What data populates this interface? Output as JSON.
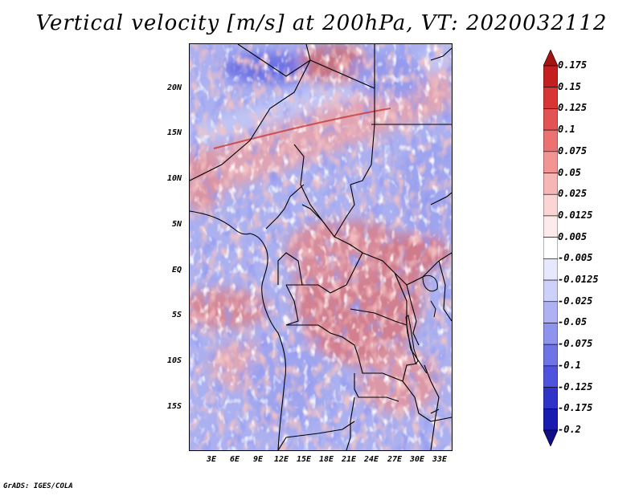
{
  "title": "Vertical velocity [m/s] at 200hPa, VT: 2020032112",
  "credit": "GrADS: IGES/COLA",
  "map": {
    "lat_labels": [
      "20N",
      "15N",
      "10N",
      "5N",
      "EQ",
      "5S",
      "10S",
      "15S"
    ],
    "lon_labels": [
      "3E",
      "6E",
      "9E",
      "12E",
      "15E",
      "18E",
      "21E",
      "24E",
      "27E",
      "30E",
      "33E"
    ]
  },
  "colorbar": {
    "labels": [
      "0.175",
      "0.15",
      "0.125",
      "0.1",
      "0.075",
      "0.05",
      "0.025",
      "0.0125",
      "0.005",
      "-0.005",
      "-0.0125",
      "-0.025",
      "-0.05",
      "-0.075",
      "-0.1",
      "-0.125",
      "-0.175",
      "-0.2"
    ],
    "colors": [
      "#a51414",
      "#c41e1e",
      "#d83535",
      "#e45353",
      "#ec7272",
      "#f29494",
      "#f7b6b6",
      "#fbd4d4",
      "#fdebeb",
      "#ffffff",
      "#e6e8fc",
      "#cdd0f8",
      "#aeb2f3",
      "#8e93ed",
      "#6e73e5",
      "#4e52dc",
      "#3033c8",
      "#1a1bb0",
      "#0e0e86"
    ]
  }
}
